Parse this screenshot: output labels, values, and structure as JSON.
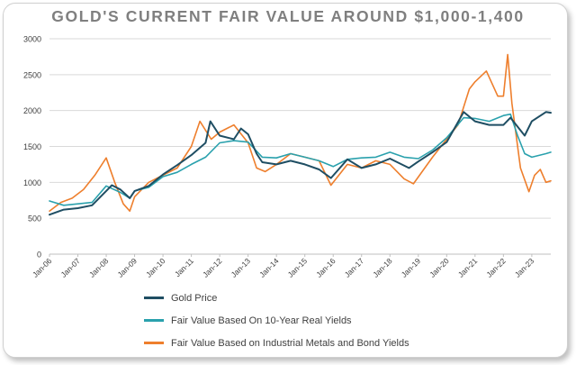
{
  "title": "GOLD'S CURRENT FAIR VALUE AROUND $1,000-1,400",
  "chart_data": {
    "type": "line",
    "title": "GOLD'S CURRENT FAIR VALUE AROUND $1,000-1,400",
    "xlabel": "",
    "ylabel": "",
    "ylim": [
      0,
      3000
    ],
    "yticks": [
      0,
      500,
      1000,
      1500,
      2000,
      2500,
      3000
    ],
    "xlim": [
      2006.0,
      2023.67
    ],
    "xtick_labels": [
      "Jan-06",
      "Jan-07",
      "Jan-08",
      "Jan-09",
      "Jan-10",
      "Jan-11",
      "Jan-12",
      "Jan-13",
      "Jan-14",
      "Jan-15",
      "Jan-16",
      "Jan-17",
      "Jan-18",
      "Jan-19",
      "Jan-20",
      "Jan-21",
      "Jan-22",
      "Jan-23"
    ],
    "grid": true,
    "legend_position": "bottom",
    "series": [
      {
        "name": "Gold Price",
        "color": "#1f4e63",
        "x": [
          2006.0,
          2006.5,
          2007.0,
          2007.5,
          2008.0,
          2008.2,
          2008.5,
          2008.83,
          2009.0,
          2009.5,
          2010.0,
          2010.5,
          2011.0,
          2011.5,
          2011.67,
          2012.0,
          2012.5,
          2012.75,
          2013.0,
          2013.3,
          2013.5,
          2014.0,
          2014.5,
          2015.0,
          2015.5,
          2015.92,
          2016.5,
          2017.0,
          2017.5,
          2018.0,
          2018.67,
          2019.0,
          2019.5,
          2020.0,
          2020.6,
          2021.0,
          2021.5,
          2022.0,
          2022.25,
          2022.75,
          2023.0,
          2023.5,
          2023.67
        ],
        "y": [
          550,
          620,
          640,
          680,
          880,
          960,
          900,
          780,
          880,
          950,
          1110,
          1240,
          1380,
          1550,
          1850,
          1650,
          1600,
          1750,
          1670,
          1400,
          1280,
          1250,
          1300,
          1250,
          1180,
          1060,
          1320,
          1200,
          1250,
          1330,
          1200,
          1290,
          1420,
          1560,
          1980,
          1850,
          1800,
          1800,
          1900,
          1650,
          1850,
          1980,
          1970
        ]
      },
      {
        "name": "Fair Value Based On 10-Year Real Yields",
        "color": "#2aa1ad",
        "x": [
          2006.0,
          2006.5,
          2007.0,
          2007.5,
          2008.0,
          2008.5,
          2008.83,
          2009.0,
          2009.5,
          2010.0,
          2010.5,
          2011.0,
          2011.5,
          2012.0,
          2012.5,
          2013.0,
          2013.5,
          2014.0,
          2014.5,
          2015.0,
          2015.5,
          2016.0,
          2016.5,
          2017.0,
          2017.5,
          2018.0,
          2018.5,
          2019.0,
          2019.5,
          2020.0,
          2020.6,
          2021.0,
          2021.5,
          2022.0,
          2022.25,
          2022.5,
          2022.75,
          2023.0,
          2023.5,
          2023.67
        ],
        "y": [
          740,
          680,
          700,
          720,
          950,
          860,
          780,
          880,
          930,
          1080,
          1140,
          1250,
          1350,
          1550,
          1580,
          1560,
          1350,
          1340,
          1400,
          1350,
          1300,
          1220,
          1320,
          1340,
          1350,
          1420,
          1350,
          1330,
          1450,
          1620,
          1900,
          1890,
          1850,
          1930,
          1950,
          1650,
          1400,
          1350,
          1400,
          1420
        ]
      },
      {
        "name": "Fair Value Based on Industrial Metals and Bond Yields",
        "color": "#ee7f2d",
        "x": [
          2006.0,
          2006.4,
          2006.8,
          2007.2,
          2007.6,
          2008.0,
          2008.3,
          2008.6,
          2008.83,
          2009.0,
          2009.5,
          2010.0,
          2010.5,
          2011.0,
          2011.3,
          2011.7,
          2012.0,
          2012.5,
          2013.0,
          2013.3,
          2013.6,
          2014.0,
          2014.5,
          2015.0,
          2015.5,
          2015.92,
          2016.5,
          2017.0,
          2017.5,
          2018.0,
          2018.5,
          2018.83,
          2019.5,
          2020.0,
          2020.4,
          2020.8,
          2021.0,
          2021.4,
          2021.8,
          2022.0,
          2022.15,
          2022.3,
          2022.6,
          2022.9,
          2023.1,
          2023.3,
          2023.5,
          2023.67
        ],
        "y": [
          600,
          720,
          780,
          900,
          1100,
          1340,
          1000,
          700,
          600,
          800,
          1000,
          1100,
          1200,
          1500,
          1850,
          1600,
          1700,
          1800,
          1550,
          1200,
          1150,
          1250,
          1400,
          1350,
          1300,
          960,
          1250,
          1200,
          1300,
          1250,
          1050,
          980,
          1350,
          1600,
          1800,
          2300,
          2400,
          2550,
          2200,
          2200,
          2780,
          2100,
          1200,
          870,
          1100,
          1180,
          1000,
          1020
        ]
      }
    ]
  },
  "legend": {
    "items": [
      {
        "label": "Gold Price",
        "color": "#1f4e63"
      },
      {
        "label": "Fair Value Based On 10-Year Real Yields",
        "color": "#2aa1ad"
      },
      {
        "label": "Fair Value Based on Industrial Metals and Bond Yields",
        "color": "#ee7f2d"
      }
    ]
  }
}
